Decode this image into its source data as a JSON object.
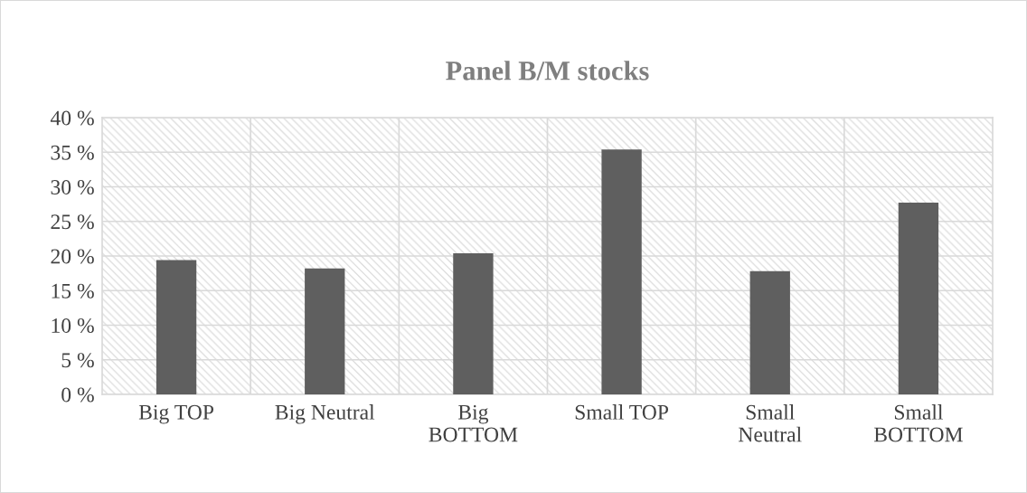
{
  "chart_data": {
    "type": "bar",
    "title": "Panel B/M stocks",
    "categories": [
      "Big TOP",
      "Big Neutral",
      "Big\nBOTTOM",
      "Small TOP",
      "Small\nNeutral",
      "Small\nBOTTOM"
    ],
    "values": [
      19.4,
      18.2,
      20.4,
      35.4,
      17.8,
      27.7
    ],
    "color": "#5f5f5f",
    "ylim": [
      0,
      40
    ],
    "yticks": [
      {
        "value": 0,
        "label": "0 %"
      },
      {
        "value": 5,
        "label": "5 %"
      },
      {
        "value": 10,
        "label": "10 %"
      },
      {
        "value": 15,
        "label": "15 %"
      },
      {
        "value": 20,
        "label": "20 %"
      },
      {
        "value": 25,
        "label": "25 %"
      },
      {
        "value": 30,
        "label": "30 %"
      },
      {
        "value": 35,
        "label": "35 %"
      },
      {
        "value": 40,
        "label": "40 %"
      }
    ],
    "grid": true
  }
}
